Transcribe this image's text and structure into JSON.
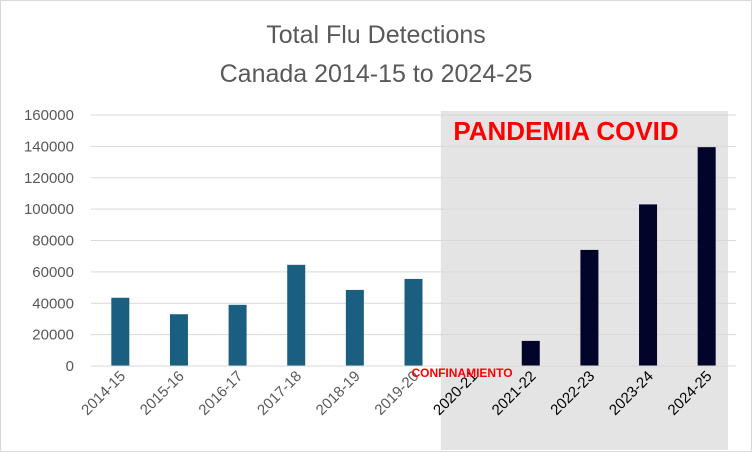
{
  "chart_data": {
    "type": "bar",
    "title": "Total Flu Detections",
    "subtitle": "Canada 2014-15 to 2024-25",
    "categories": [
      "2014-15",
      "2015-16",
      "2016-17",
      "2017-18",
      "2018-19",
      "2019-20",
      "2020-21",
      "2021-22",
      "2022-23",
      "2023-24",
      "2024-25"
    ],
    "values": [
      43500,
      33000,
      39000,
      64500,
      48500,
      55500,
      0,
      16000,
      74000,
      103000,
      139500
    ],
    "yticks": [
      "0",
      "20000",
      "40000",
      "60000",
      "80000",
      "100000",
      "120000",
      "140000",
      "160000"
    ],
    "ylim": [
      0,
      160000
    ],
    "grid": true,
    "colors": {
      "pre_pandemic": "#1b5f80",
      "pandemic": "#02042a",
      "pandemic_region": "#e4e4e4",
      "annotation": "#ff0000"
    },
    "pandemic_start_index": 6,
    "annotations": {
      "pandemic": "PANDEMIA COVID",
      "lockdown": "CONFINAMIENTO"
    }
  }
}
